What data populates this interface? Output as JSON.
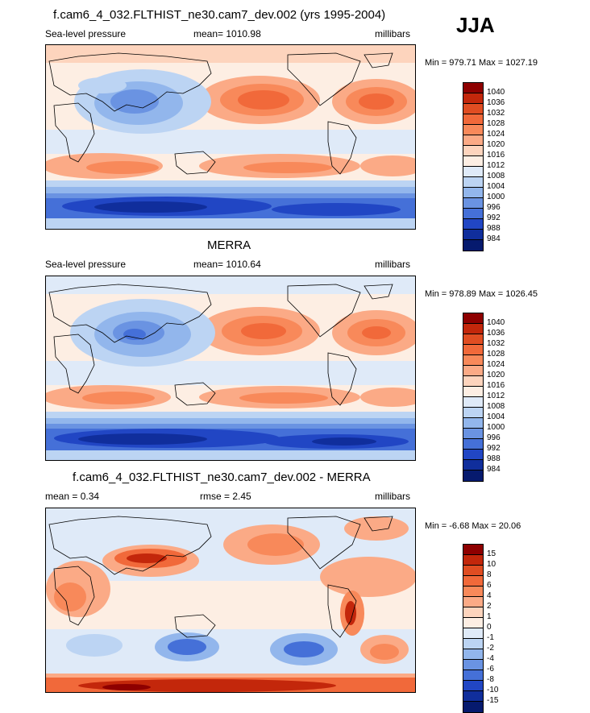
{
  "season": "JJA",
  "panels": [
    {
      "title": "f.cam6_4_032.FLTHIST_ne30.cam7_dev.002 (yrs 1995-2004)",
      "left_label": "Sea-level pressure",
      "center_label": "mean= 1010.98",
      "right_label": "millibars",
      "minmax": "Min = 979.71 Max = 1027.19",
      "colorbar": {
        "ticks": [
          "1040",
          "1036",
          "1032",
          "1028",
          "1024",
          "1020",
          "1016",
          "1012",
          "1008",
          "1004",
          "1000",
          "996",
          "992",
          "988",
          "984"
        ],
        "colors": [
          "#8e0000",
          "#c3270b",
          "#e04d22",
          "#f1693a",
          "#f8895a",
          "#fbaa86",
          "#fdd4bd",
          "#fdeee3",
          "#dfeaf8",
          "#bcd4f3",
          "#92b6ec",
          "#6a93e2",
          "#4570d8",
          "#2146c4",
          "#102e9c",
          "#061a6e"
        ]
      }
    },
    {
      "title": "MERRA",
      "left_label": "Sea-level pressure",
      "center_label": "mean= 1010.64",
      "right_label": "millibars",
      "minmax": "Min = 978.89 Max = 1026.45",
      "colorbar": {
        "ticks": [
          "1040",
          "1036",
          "1032",
          "1028",
          "1024",
          "1020",
          "1016",
          "1012",
          "1008",
          "1004",
          "1000",
          "996",
          "992",
          "988",
          "984"
        ],
        "colors": [
          "#8e0000",
          "#c3270b",
          "#e04d22",
          "#f1693a",
          "#f8895a",
          "#fbaa86",
          "#fdd4bd",
          "#fdeee3",
          "#dfeaf8",
          "#bcd4f3",
          "#92b6ec",
          "#6a93e2",
          "#4570d8",
          "#2146c4",
          "#102e9c",
          "#061a6e"
        ]
      }
    },
    {
      "title": "f.cam6_4_032.FLTHIST_ne30.cam7_dev.002 - MERRA",
      "left_label": "mean =   0.34",
      "center_label": "rmse =   2.45",
      "right_label": "millibars",
      "minmax": "Min =  -6.68 Max =  20.06",
      "colorbar": {
        "ticks": [
          "15",
          "10",
          "8",
          "6",
          "4",
          "2",
          "1",
          "0",
          "-1",
          "-2",
          "-4",
          "-6",
          "-8",
          "-10",
          "-15"
        ],
        "colors": [
          "#8e0000",
          "#c3270b",
          "#e04d22",
          "#f1693a",
          "#f8895a",
          "#fbaa86",
          "#fdd4bd",
          "#fdeee3",
          "#dfeaf8",
          "#bcd4f3",
          "#92b6ec",
          "#6a93e2",
          "#4570d8",
          "#2146c4",
          "#102e9c",
          "#061a6e"
        ]
      }
    }
  ]
}
